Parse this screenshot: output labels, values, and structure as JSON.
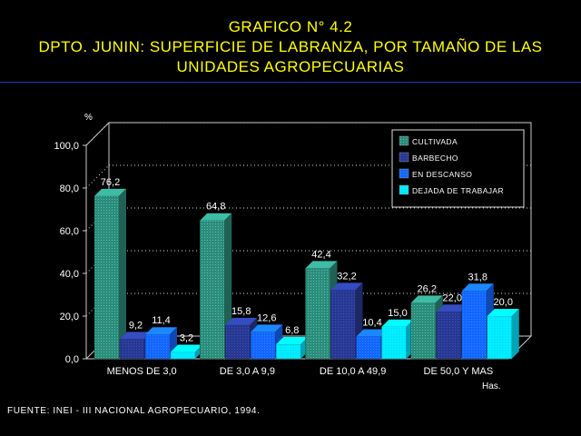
{
  "title_lines": [
    "GRAFICO N° 4.2",
    "DPTO. JUNIN: SUPERFICIE DE LABRANZA, POR TAMAÑO DE LAS",
    "UNIDADES AGROPECUARIAS"
  ],
  "source": "FUENTE: INEI - III NACIONAL AGROPECUARIO, 1994.",
  "chart_data": {
    "type": "bar",
    "ylabel": "%",
    "xlabel": "Has.",
    "ylim": [
      0,
      100
    ],
    "yticks": [
      "0,0",
      "20,0",
      "40,0",
      "60,0",
      "80,0",
      "100,0"
    ],
    "categories": [
      "MENOS DE 3,0",
      "DE 3,0 A 9,9",
      "DE 10,0 A 49,9",
      "DE 50,0 Y MAS"
    ],
    "series": [
      {
        "name": "CULTIVADA",
        "color": "#2e8b7a",
        "values": [
          76.2,
          64.8,
          42.4,
          26.2
        ],
        "labels": [
          "76,2",
          "64,8",
          "42,4",
          "26,2"
        ]
      },
      {
        "name": "BARBECHO",
        "color": "#28388f",
        "values": [
          9.2,
          15.8,
          32.2,
          22.0
        ],
        "labels": [
          "9,2",
          "15,8",
          "32,2",
          "22,0"
        ]
      },
      {
        "name": "EN DESCANSO",
        "color": "#1565ff",
        "values": [
          11.4,
          12.6,
          10.4,
          31.8
        ],
        "labels": [
          "11,4",
          "12,6",
          "10,4",
          "31,8"
        ]
      },
      {
        "name": "DEJADA DE TRABAJAR",
        "color": "#00e8ff",
        "values": [
          3.2,
          6.8,
          15.0,
          20.0
        ],
        "labels": [
          "3,2",
          "6,8",
          "15,0",
          "20,0"
        ]
      }
    ],
    "grid": "dotted",
    "legend_position": "top-right"
  }
}
